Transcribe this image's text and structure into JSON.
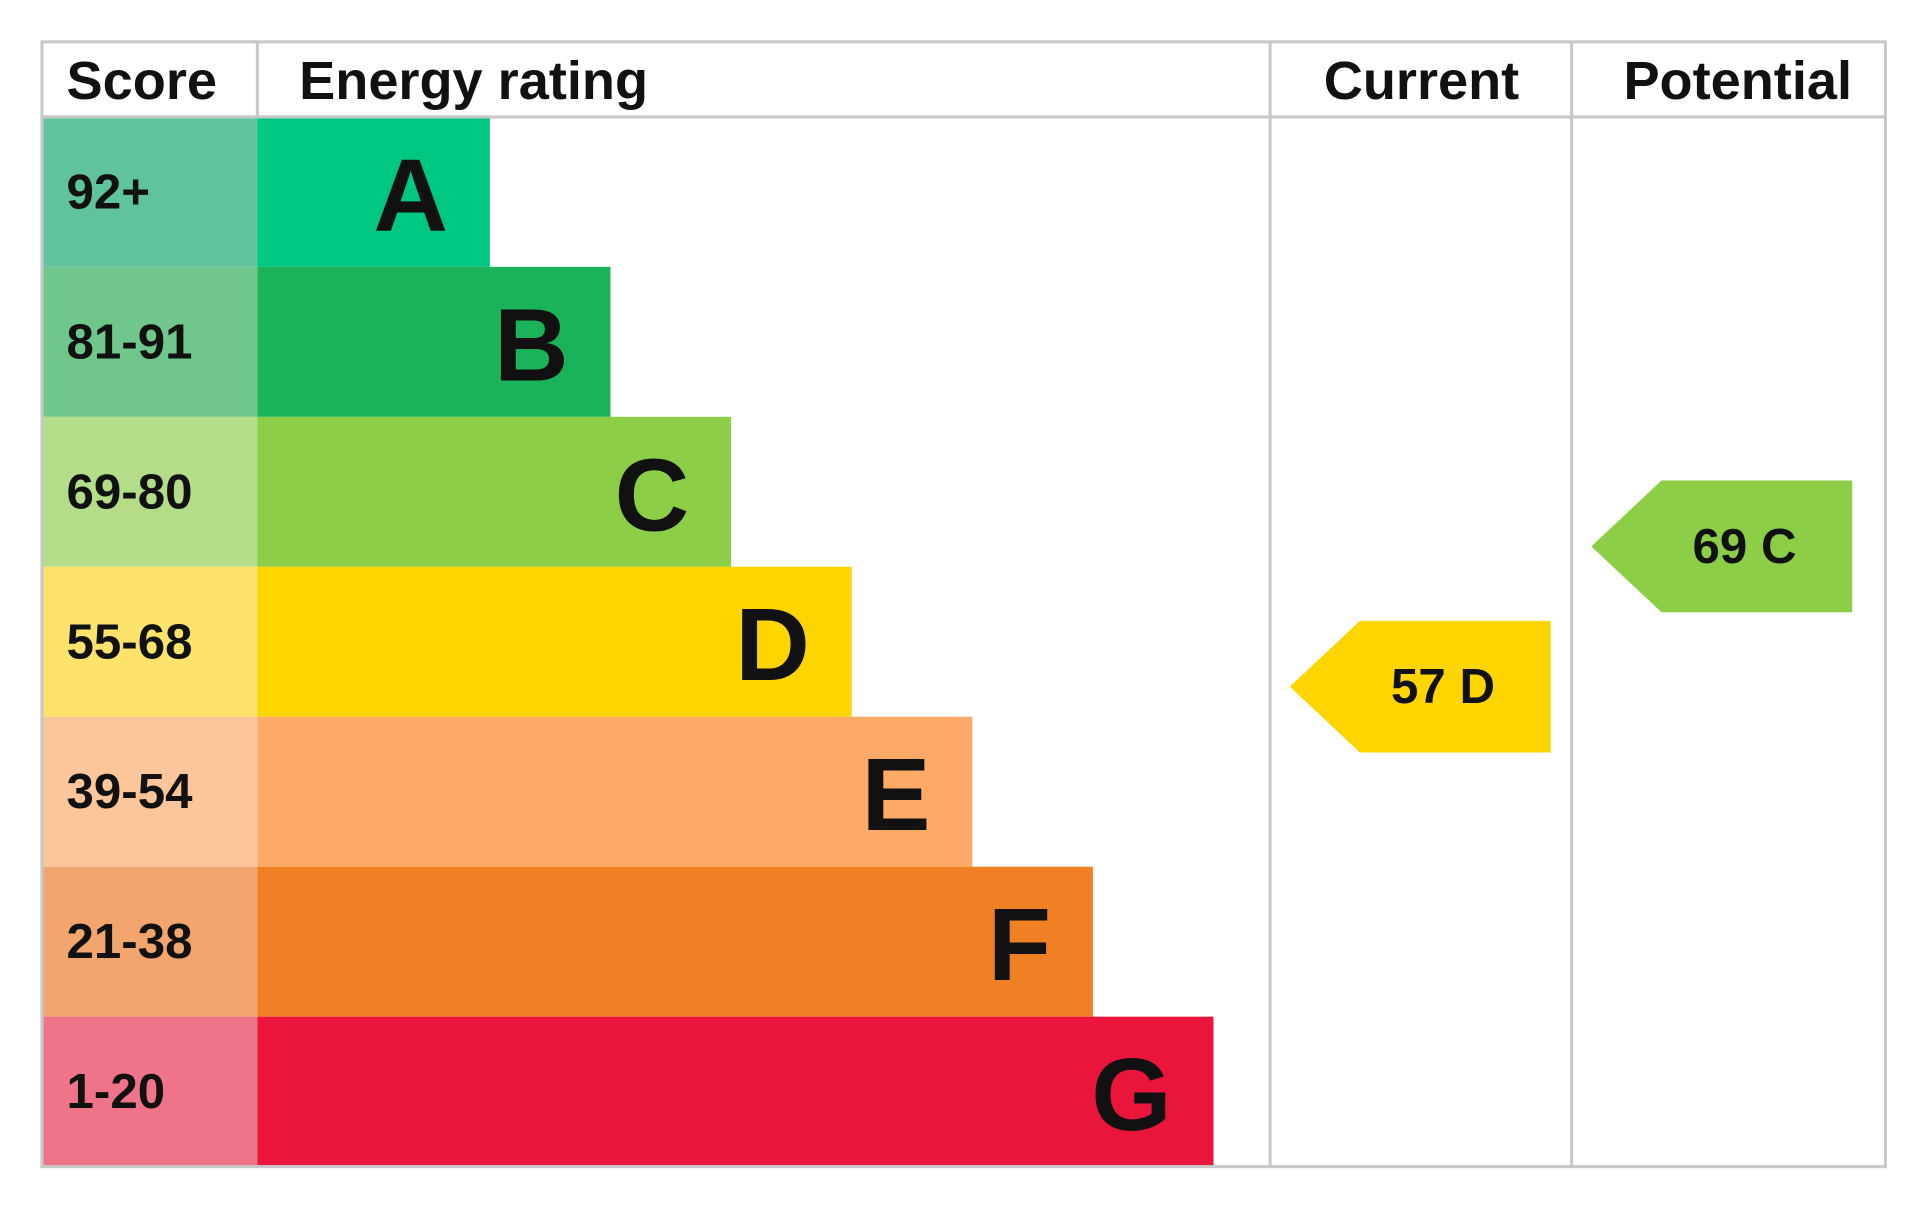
{
  "chart_data": {
    "type": "epc",
    "headers": [
      "Score",
      "Energy rating",
      "Current",
      "Potential"
    ],
    "bands": [
      {
        "score": "92+",
        "letter": "A",
        "color": "#00c781",
        "score_color": "#5fc49c"
      },
      {
        "score": "81-91",
        "letter": "B",
        "color": "#1bb35a",
        "score_color": "#6fc78b"
      },
      {
        "score": "69-80",
        "letter": "C",
        "color": "#8cce46",
        "score_color": "#b3dd88"
      },
      {
        "score": "55-68",
        "letter": "D",
        "color": "#ffd500",
        "score_color": "#fde36b"
      },
      {
        "score": "39-54",
        "letter": "E",
        "color": "#fcaa65",
        "score_color": "#fdc59a"
      },
      {
        "score": "21-38",
        "letter": "F",
        "color": "#ef8023",
        "score_color": "#f2a66d"
      },
      {
        "score": "1-20",
        "letter": "G",
        "color": "#e9153b",
        "score_color": "#ef7489"
      }
    ],
    "current": {
      "value": 57,
      "label": "57 D",
      "color": "#ffd500"
    },
    "potential": {
      "value": 69,
      "label": "69 C",
      "color": "#8cce46"
    }
  }
}
